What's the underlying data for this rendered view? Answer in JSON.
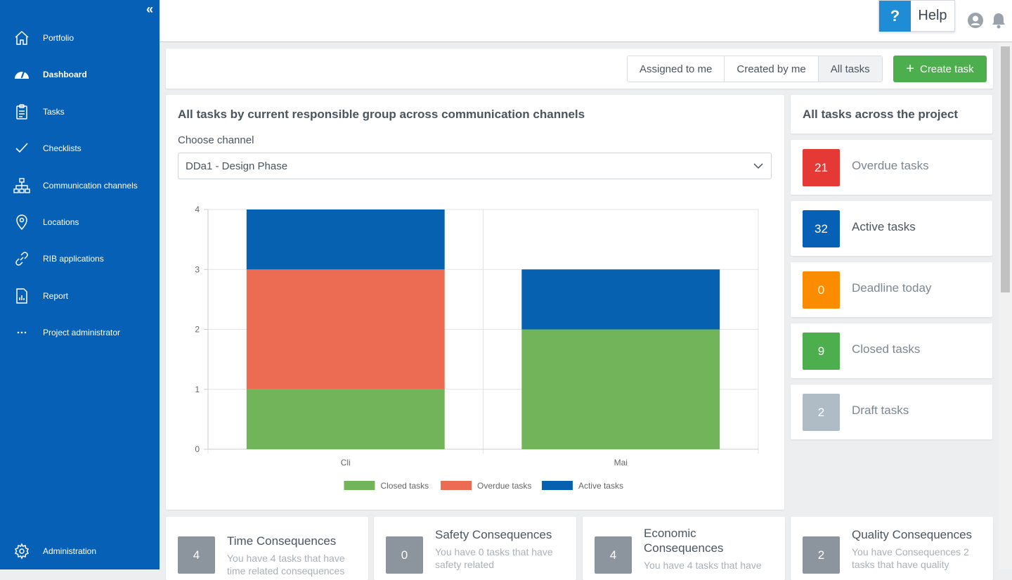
{
  "sidebar": {
    "collapse_icon": "double-chevron-left-icon",
    "items": [
      {
        "label": "Portfolio",
        "icon": "home-icon"
      },
      {
        "label": "Dashboard",
        "icon": "gauge-icon"
      },
      {
        "label": "Tasks",
        "icon": "clipboard-icon"
      },
      {
        "label": "Checklists",
        "icon": "check-icon"
      },
      {
        "label": "Communication channels",
        "icon": "org-chart-icon"
      },
      {
        "label": "Locations",
        "icon": "map-pin-icon"
      },
      {
        "label": "RIB applications",
        "icon": "link-icon"
      },
      {
        "label": "Report",
        "icon": "report-icon"
      },
      {
        "label": "Project administrator",
        "icon": "ellipsis-icon"
      }
    ],
    "admin": {
      "label": "Administration",
      "icon": "gear-icon"
    }
  },
  "topbar": {
    "help_icon": "?",
    "help_label": "Help"
  },
  "filters": {
    "assigned": "Assigned to me",
    "created": "Created by me",
    "all": "All tasks",
    "create": "Create task"
  },
  "chart_card": {
    "title": "All tasks by current responsible group across communication channels",
    "channel_label": "Choose channel",
    "channel_value": "DDa1 - Design Phase"
  },
  "chart_data": {
    "type": "bar",
    "stacked": true,
    "categories": [
      "Cli",
      "Mai"
    ],
    "series": [
      {
        "name": "Closed tasks",
        "values": [
          1,
          2
        ],
        "color": "#72b45a"
      },
      {
        "name": "Overdue tasks",
        "values": [
          2,
          0
        ],
        "color": "#ec6c53"
      },
      {
        "name": "Active tasks",
        "values": [
          1,
          1
        ],
        "color": "#0662b0"
      }
    ],
    "ylim": [
      0,
      4
    ],
    "yticks": [
      0,
      1,
      2,
      3,
      4
    ],
    "grid": true,
    "legend": "bottom"
  },
  "summary": {
    "title": "All tasks across the project",
    "stats": [
      {
        "count": "21",
        "label": "Overdue tasks",
        "color": "#e53935"
      },
      {
        "count": "32",
        "label": "Active tasks",
        "color": "#0660b6"
      },
      {
        "count": "0",
        "label": "Deadline today",
        "color": "#fb8c00"
      },
      {
        "count": "9",
        "label": "Closed tasks",
        "color": "#4cae4c"
      },
      {
        "count": "2",
        "label": "Draft tasks",
        "color": "#b0bcc5"
      }
    ]
  },
  "consequences": [
    {
      "count": "4",
      "title": "Time Consequences",
      "desc": "You have 4 tasks that have time related consequences"
    },
    {
      "count": "0",
      "title": "Safety Consequences",
      "desc": "You have 0 tasks that have safety related"
    },
    {
      "count": "4",
      "title": "Economic Consequences",
      "desc": "You have 4 tasks that have"
    },
    {
      "count": "2",
      "title": "Quality Consequences",
      "desc": "You have Consequences 2 tasks that have quality"
    }
  ]
}
